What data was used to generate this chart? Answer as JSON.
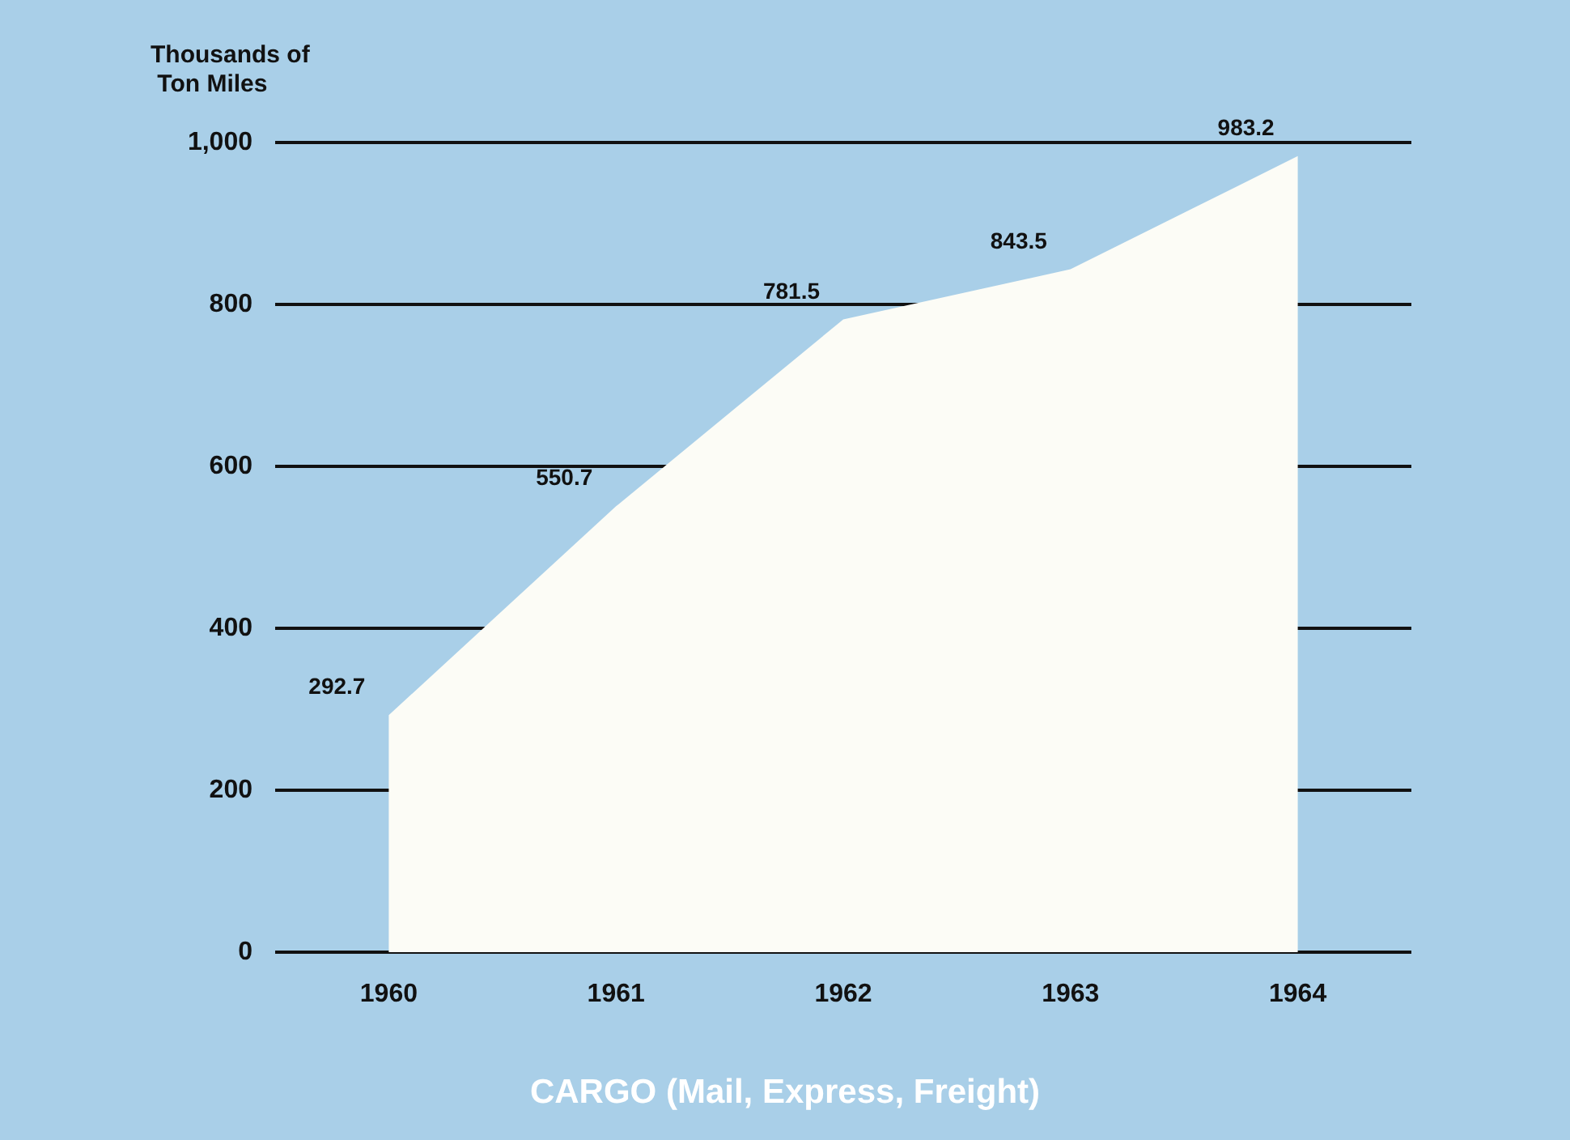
{
  "chart_data": {
    "type": "area",
    "title": "CARGO (Mail, Express, Freight)",
    "ylabel": "Thousands of Ton Miles",
    "categories": [
      "1960",
      "1961",
      "1962",
      "1963",
      "1964"
    ],
    "series": [
      {
        "color": "#fcfcf6",
        "values": [
          292.7,
          550.7,
          781.5,
          843.5,
          983.2
        ]
      }
    ],
    "ylim": [
      0,
      1000
    ],
    "yticks": [
      0,
      200,
      400,
      600,
      800,
      {
        "value": 1000,
        "label": "1,000"
      }
    ],
    "grid": "y",
    "data_labels": true
  }
}
